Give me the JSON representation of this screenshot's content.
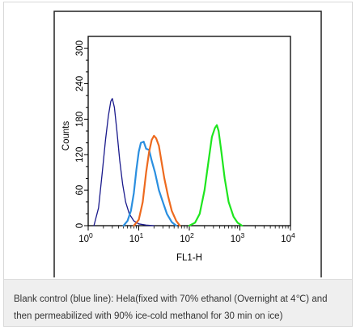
{
  "chart_data": {
    "type": "line",
    "title": "",
    "xlabel": "FL1-H",
    "ylabel": "Counts",
    "x_scale": "log",
    "xlim": [
      1,
      10000
    ],
    "ylim": [
      0,
      320
    ],
    "x_ticks": [
      {
        "value": 1,
        "base": "10",
        "exp": "0"
      },
      {
        "value": 10,
        "base": "10",
        "exp": "1"
      },
      {
        "value": 100,
        "base": "10",
        "exp": "2"
      },
      {
        "value": 1000,
        "base": "10",
        "exp": "3"
      },
      {
        "value": 10000,
        "base": "10",
        "exp": "4"
      }
    ],
    "y_ticks": [
      "0",
      "60",
      "120",
      "180",
      "240",
      "300"
    ],
    "grid": false,
    "series": [
      {
        "color": "#1a1a8c",
        "x": [
          1.3,
          1.6,
          1.9,
          2.2,
          2.5,
          2.8,
          3.0,
          3.3,
          3.7,
          4.2,
          4.8,
          5.5,
          6.5,
          8,
          10,
          14,
          20
        ],
        "y": [
          0,
          30,
          90,
          145,
          185,
          210,
          215,
          200,
          160,
          110,
          70,
          40,
          20,
          8,
          3,
          1,
          0
        ]
      },
      {
        "color": "#2a8fe0",
        "x": [
          5,
          6,
          7,
          8,
          9,
          10,
          11,
          12.5,
          14,
          16,
          18,
          21,
          25,
          30,
          36,
          45,
          55
        ],
        "y": [
          0,
          8,
          25,
          55,
          95,
          125,
          140,
          142,
          130,
          128,
          110,
          90,
          60,
          40,
          20,
          6,
          0
        ]
      },
      {
        "color": "#ee6a1e",
        "x": [
          8,
          10,
          12,
          14,
          16,
          18,
          20,
          22,
          25,
          28,
          32,
          38,
          45,
          55,
          65
        ],
        "y": [
          0,
          10,
          40,
          90,
          125,
          145,
          152,
          148,
          135,
          110,
          80,
          50,
          25,
          8,
          0
        ]
      },
      {
        "color": "#1ee61e",
        "x": [
          100,
          130,
          160,
          200,
          240,
          280,
          320,
          350,
          380,
          430,
          500,
          600,
          750,
          900,
          1100
        ],
        "y": [
          0,
          5,
          20,
          60,
          110,
          150,
          165,
          170,
          160,
          125,
          80,
          40,
          15,
          5,
          0
        ]
      }
    ]
  },
  "caption": {
    "line1": "Blank control (blue line): Hela(fixed with 70% ethanol (Overnight at 4℃) and",
    "line2": "then permeabilized with 90% ice-cold methanol for 30 min on ice)"
  }
}
